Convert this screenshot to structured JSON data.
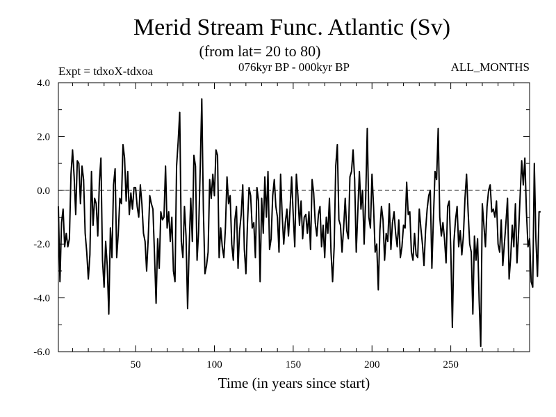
{
  "chart_data": {
    "type": "line",
    "title": "Merid Stream Func. Atlantic (Sv)",
    "subtitle": "(from lat= 20 to 80)",
    "annotation_left": "Expt = tdxoX-tdxoa",
    "annotation_center": "076kyr BP - 000kyr BP",
    "annotation_right": "ALL_MONTHS",
    "xlabel": "Time (in years since start)",
    "ylabel": "",
    "xlim": [
      1,
      300
    ],
    "ylim": [
      -6.0,
      4.0
    ],
    "x_ticks": [
      50,
      100,
      150,
      200,
      250
    ],
    "y_ticks": [
      "4.0",
      "2.0",
      "0.0",
      "-2.0",
      "-4.0",
      "-6.0"
    ],
    "reference_line": {
      "y": 0.0,
      "style": "dashed"
    },
    "grid": false,
    "series": [
      {
        "color": "#000000",
        "x_start": 1,
        "x_step": 1,
        "values": [
          -0.6,
          -3.4,
          -1.2,
          -0.7,
          -2.1,
          -1.6,
          -2.1,
          -1.8,
          0.6,
          1.5,
          0.5,
          -0.9,
          1.1,
          1.0,
          -0.5,
          0.9,
          0.4,
          -1.6,
          -2.3,
          -3.3,
          -2.4,
          0.7,
          -1.3,
          -0.3,
          -0.5,
          -1.7,
          0.3,
          1.2,
          -2.6,
          -3.6,
          -1.9,
          -2.8,
          -4.6,
          -1.4,
          -2.5,
          0.2,
          0.8,
          -2.5,
          -1.6,
          -0.3,
          -0.5,
          1.7,
          1.2,
          -0.4,
          0.7,
          -0.9,
          -0.1,
          -0.7,
          0.1,
          0.1,
          -0.6,
          -1.0,
          0.2,
          -0.5,
          -1.6,
          -1.9,
          -3.0,
          -1.8,
          -0.2,
          -0.5,
          -0.7,
          -2.4,
          -4.2,
          -1.8,
          -2.9,
          -0.8,
          -1.1,
          -1.0,
          0.9,
          -1.4,
          -0.8,
          -1.9,
          -1.0,
          -3.0,
          -3.4,
          0.9,
          1.8,
          2.9,
          -1.9,
          -2.5,
          -0.6,
          -1.7,
          -4.4,
          -2.1,
          -0.3,
          -1.9,
          1.3,
          0.9,
          -2.6,
          -1.5,
          0.8,
          3.4,
          -0.7,
          -3.1,
          -2.8,
          -2.3,
          0.4,
          -0.3,
          0.6,
          -0.2,
          1.5,
          1.3,
          -2.5,
          -1.4,
          -2.1,
          -2.5,
          -1.4,
          0.5,
          -0.5,
          -0.2,
          -2.0,
          -2.6,
          -1.1,
          -0.6,
          -2.9,
          -1.5,
          -0.9,
          0.2,
          -2.2,
          -3.1,
          -1.2,
          0.1,
          -0.2,
          -1.4,
          -1.2,
          -2.5,
          0.1,
          -0.4,
          -3.4,
          -0.3,
          -1.6,
          0.5,
          -1.0,
          0.7,
          -2.2,
          -1.8,
          -0.2,
          0.4,
          -0.6,
          -1.0,
          -2.3,
          0.6,
          -0.9,
          -2.0,
          -1.2,
          -0.7,
          -1.7,
          -0.7,
          0.5,
          -0.9,
          -2.1,
          0.6,
          -0.2,
          -1.3,
          -0.4,
          -1.8,
          -1.0,
          -0.9,
          -1.6,
          -0.8,
          -2.2,
          0.4,
          -0.1,
          -1.2,
          -1.7,
          -0.9,
          -0.6,
          -2.1,
          -1.3,
          -2.5,
          -1.0,
          -1.6,
          -0.3,
          -2.3,
          -3.4,
          -2.1,
          0.9,
          1.7,
          -1.1,
          -1.3,
          -2.3,
          -1.4,
          -0.3,
          -1.5,
          -1.8,
          0.5,
          0.7,
          1.5,
          0.4,
          -2.3,
          -0.8,
          0.7,
          -0.7,
          0.0,
          -2.0,
          -0.3,
          2.3,
          -1.0,
          -1.4,
          0.6,
          -0.6,
          -2.3,
          -2.0,
          -3.7,
          -1.5,
          -0.6,
          -1.1,
          -2.6,
          -1.6,
          -1.9,
          -0.5,
          -2.2,
          -1.2,
          -0.8,
          -1.6,
          -2.1,
          -1.1,
          -2.5,
          -2.1,
          -1.3,
          -1.4,
          0.3,
          -0.9,
          -0.8,
          -2.3,
          -2.6,
          -1.6,
          -2.4,
          -2.5,
          -0.7,
          -1.4,
          -2.0,
          -2.8,
          -1.5,
          -0.7,
          -0.2,
          0.0,
          -2.9,
          -1.0,
          0.7,
          0.4,
          2.3,
          -1.0,
          -1.7,
          -1.2,
          -1.8,
          -2.7,
          -0.6,
          -0.4,
          -2.2,
          -5.1,
          -1.9,
          -1.1,
          -0.6,
          -2.1,
          -1.5,
          -2.4,
          -1.7,
          -0.3,
          0.6,
          -0.8,
          -2.0,
          -2.3,
          -4.6,
          -1.7,
          -2.6,
          -1.8,
          -4.1,
          -5.8,
          -0.5,
          -1.3,
          -2.1,
          -0.6,
          0.0,
          0.2,
          -0.8,
          -0.7,
          -1.0,
          -0.4,
          -2.0,
          -2.3,
          -1.1,
          -2.8,
          -2.0,
          -1.2,
          -0.3,
          -3.3,
          -2.5,
          -1.3,
          -2.1,
          -0.5,
          -2.7,
          -1.6,
          -0.2,
          1.1,
          0.2,
          1.2,
          -0.8,
          -2.1,
          -1.8,
          -3.4,
          -3.6,
          1.0,
          -1.8,
          -3.2,
          -0.8,
          -0.8
        ]
      }
    ]
  }
}
